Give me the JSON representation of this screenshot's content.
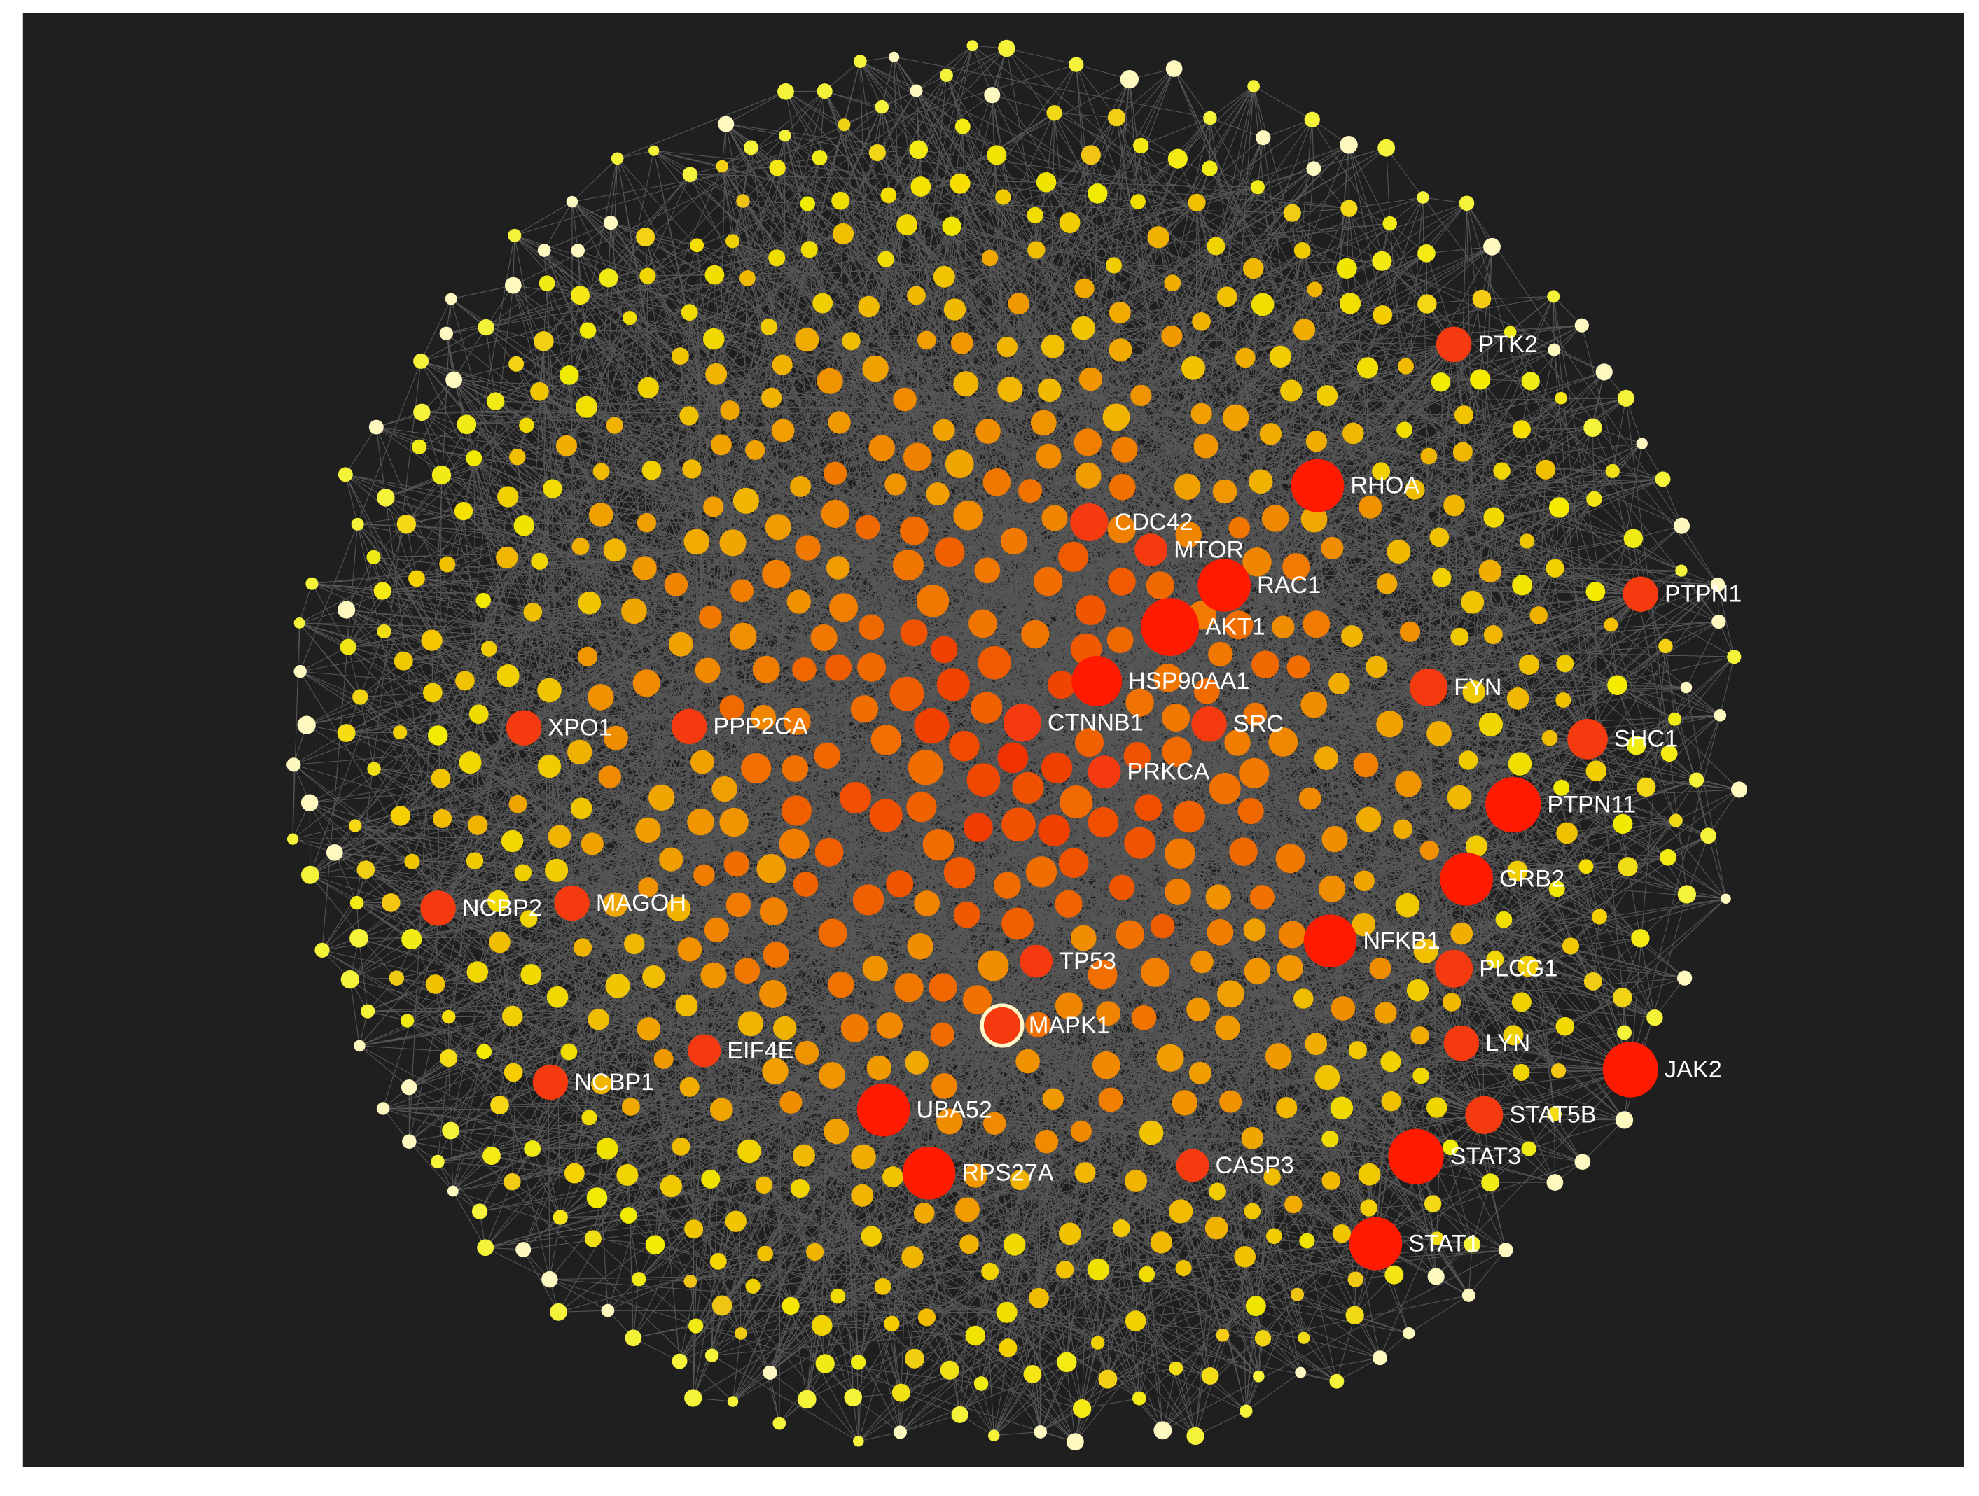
{
  "nodes": [
    {
      "label": "PTK2"
    },
    {
      "label": "RHOA"
    },
    {
      "label": "CDC42"
    },
    {
      "label": "MTOR"
    },
    {
      "label": "RAC1"
    },
    {
      "label": "AKT1"
    },
    {
      "label": "PTPN1"
    },
    {
      "label": "HSP90AA1"
    },
    {
      "label": "FYN"
    },
    {
      "label": "XPO1"
    },
    {
      "label": "PPP2CA"
    },
    {
      "label": "CTNNB1"
    },
    {
      "label": "SRC"
    },
    {
      "label": "SHC1"
    },
    {
      "label": "PRKCA"
    },
    {
      "label": "PTPN11"
    },
    {
      "label": "GRB2"
    },
    {
      "label": "NCBP2"
    },
    {
      "label": "MAGOH"
    },
    {
      "label": "NFKB1"
    },
    {
      "label": "TP53"
    },
    {
      "label": "PLCG1"
    },
    {
      "label": "MAPK1"
    },
    {
      "label": "LYN"
    },
    {
      "label": "EIF4E"
    },
    {
      "label": "JAK2"
    },
    {
      "label": "NCBP1"
    },
    {
      "label": "UBA52"
    },
    {
      "label": "STAT5B"
    },
    {
      "label": "STAT3"
    },
    {
      "label": "RPS27A"
    },
    {
      "label": "CASP3"
    },
    {
      "label": "STAT1"
    }
  ]
}
